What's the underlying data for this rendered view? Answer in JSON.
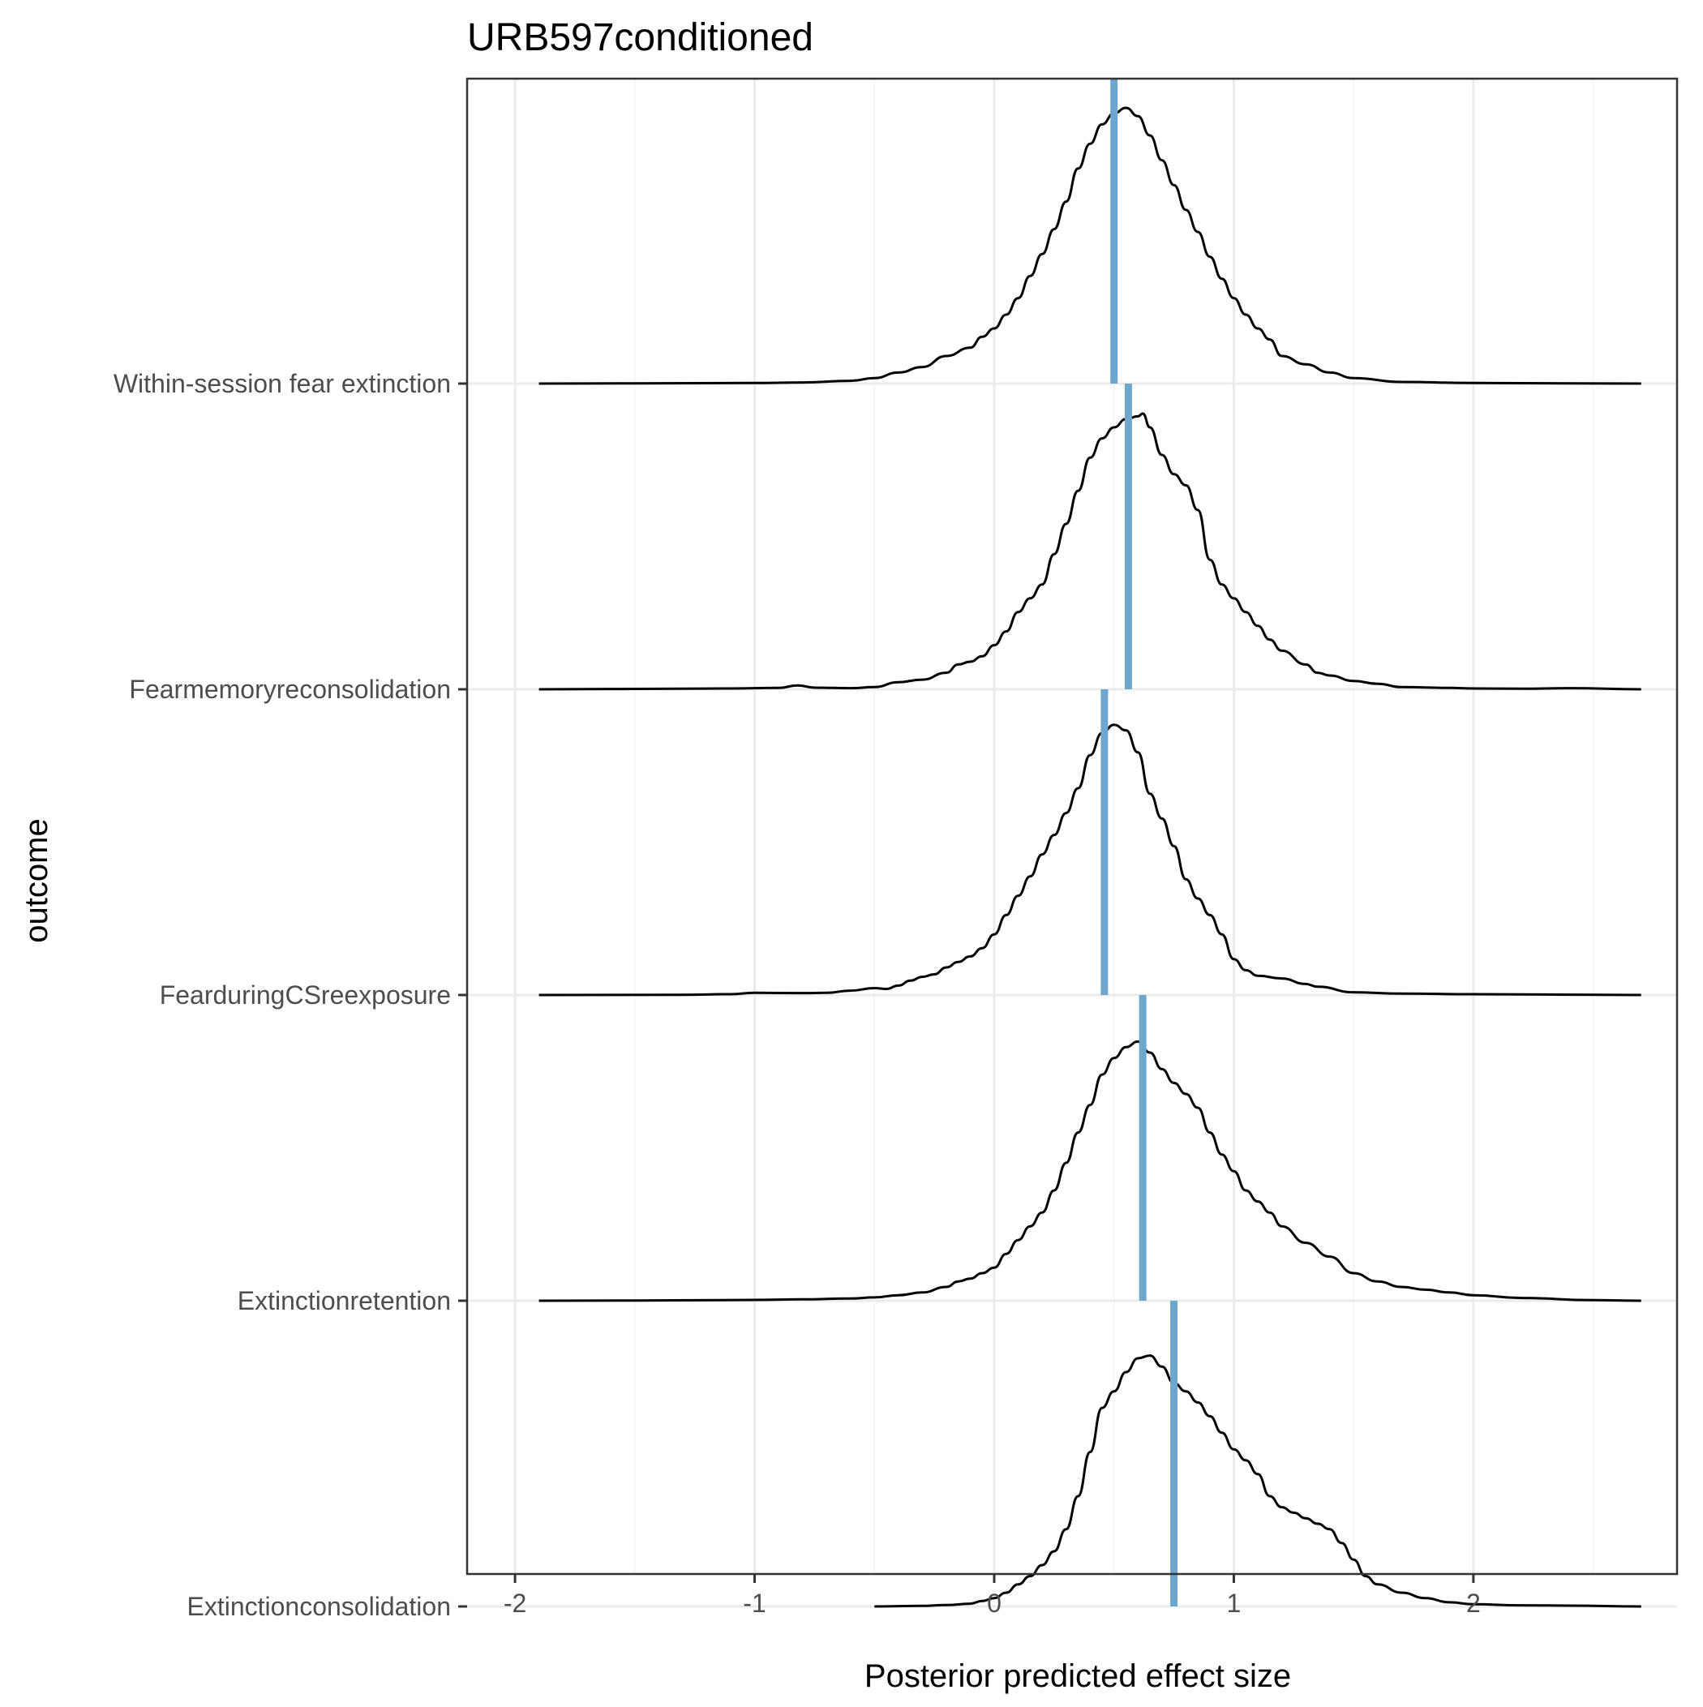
{
  "chart_data": {
    "type": "ridgeline",
    "title": "URB597conditioned",
    "xlabel": "Posterior predicted effect size",
    "ylabel": "outcome",
    "xlim": [
      -2.2,
      2.85
    ],
    "x_ticks": [
      "-2",
      "-1",
      "0",
      "1",
      "2"
    ],
    "x_tick_values": [
      -2,
      -1,
      0,
      1,
      2
    ],
    "grid": true,
    "colors": {
      "density_line": "#000000",
      "mean_line": "#6ea6cd",
      "grid_major": "#ebebeb",
      "grid_minor": "#f3f3f3",
      "panel_border": "#333333"
    },
    "series": [
      {
        "name": "Within-session fear extinction",
        "mean": 0.5,
        "density": [
          [
            -1.9,
            0
          ],
          [
            -1.5,
            0.001
          ],
          [
            -1.0,
            0.002
          ],
          [
            -0.8,
            0.004
          ],
          [
            -0.6,
            0.01
          ],
          [
            -0.5,
            0.02
          ],
          [
            -0.4,
            0.04
          ],
          [
            -0.3,
            0.06
          ],
          [
            -0.2,
            0.1
          ],
          [
            -0.1,
            0.13
          ],
          [
            -0.05,
            0.17
          ],
          [
            0.0,
            0.2
          ],
          [
            0.05,
            0.25
          ],
          [
            0.1,
            0.31
          ],
          [
            0.15,
            0.39
          ],
          [
            0.2,
            0.47
          ],
          [
            0.25,
            0.56
          ],
          [
            0.3,
            0.66
          ],
          [
            0.35,
            0.78
          ],
          [
            0.4,
            0.87
          ],
          [
            0.45,
            0.94
          ],
          [
            0.5,
            0.98
          ],
          [
            0.55,
            1.0
          ],
          [
            0.6,
            0.97
          ],
          [
            0.65,
            0.9
          ],
          [
            0.7,
            0.81
          ],
          [
            0.75,
            0.72
          ],
          [
            0.8,
            0.63
          ],
          [
            0.85,
            0.55
          ],
          [
            0.9,
            0.46
          ],
          [
            0.95,
            0.38
          ],
          [
            1.0,
            0.31
          ],
          [
            1.05,
            0.25
          ],
          [
            1.1,
            0.2
          ],
          [
            1.15,
            0.16
          ],
          [
            1.2,
            0.1
          ],
          [
            1.3,
            0.07
          ],
          [
            1.4,
            0.04
          ],
          [
            1.5,
            0.02
          ],
          [
            1.7,
            0.006
          ],
          [
            2.0,
            0.002
          ],
          [
            2.4,
            0.001
          ],
          [
            2.7,
            0
          ]
        ]
      },
      {
        "name": "Fearmemoryreconsolidation",
        "mean": 0.56,
        "density": [
          [
            -1.9,
            0
          ],
          [
            -1.3,
            0.002
          ],
          [
            -1.1,
            0.003
          ],
          [
            -0.9,
            0.005
          ],
          [
            -0.82,
            0.014
          ],
          [
            -0.75,
            0.006
          ],
          [
            -0.6,
            0.004
          ],
          [
            -0.5,
            0.008
          ],
          [
            -0.4,
            0.026
          ],
          [
            -0.3,
            0.035
          ],
          [
            -0.2,
            0.06
          ],
          [
            -0.15,
            0.09
          ],
          [
            -0.1,
            0.1
          ],
          [
            -0.05,
            0.12
          ],
          [
            0.0,
            0.16
          ],
          [
            0.05,
            0.21
          ],
          [
            0.1,
            0.28
          ],
          [
            0.15,
            0.33
          ],
          [
            0.2,
            0.38
          ],
          [
            0.25,
            0.49
          ],
          [
            0.3,
            0.6
          ],
          [
            0.35,
            0.72
          ],
          [
            0.4,
            0.84
          ],
          [
            0.45,
            0.91
          ],
          [
            0.5,
            0.95
          ],
          [
            0.55,
            0.98
          ],
          [
            0.6,
            0.99
          ],
          [
            0.62,
            1.0
          ],
          [
            0.65,
            0.95
          ],
          [
            0.7,
            0.85
          ],
          [
            0.75,
            0.78
          ],
          [
            0.8,
            0.74
          ],
          [
            0.85,
            0.65
          ],
          [
            0.9,
            0.47
          ],
          [
            0.95,
            0.38
          ],
          [
            1.0,
            0.33
          ],
          [
            1.05,
            0.28
          ],
          [
            1.1,
            0.23
          ],
          [
            1.15,
            0.18
          ],
          [
            1.2,
            0.14
          ],
          [
            1.3,
            0.09
          ],
          [
            1.35,
            0.06
          ],
          [
            1.4,
            0.05
          ],
          [
            1.5,
            0.03
          ],
          [
            1.6,
            0.02
          ],
          [
            1.7,
            0.008
          ],
          [
            1.9,
            0.005
          ],
          [
            2.0,
            0.003
          ],
          [
            2.2,
            0.002
          ],
          [
            2.4,
            0.004
          ],
          [
            2.7,
            0
          ]
        ]
      },
      {
        "name": "FearduringCSreexposure",
        "mean": 0.46,
        "density": [
          [
            -1.9,
            0
          ],
          [
            -1.3,
            0.001
          ],
          [
            -1.1,
            0.003
          ],
          [
            -1.0,
            0.008
          ],
          [
            -0.8,
            0.007
          ],
          [
            -0.7,
            0.008
          ],
          [
            -0.6,
            0.016
          ],
          [
            -0.5,
            0.025
          ],
          [
            -0.45,
            0.022
          ],
          [
            -0.4,
            0.034
          ],
          [
            -0.35,
            0.052
          ],
          [
            -0.3,
            0.066
          ],
          [
            -0.25,
            0.075
          ],
          [
            -0.2,
            0.1
          ],
          [
            -0.15,
            0.12
          ],
          [
            -0.1,
            0.14
          ],
          [
            -0.05,
            0.17
          ],
          [
            0.0,
            0.22
          ],
          [
            0.05,
            0.29
          ],
          [
            0.1,
            0.36
          ],
          [
            0.15,
            0.43
          ],
          [
            0.2,
            0.51
          ],
          [
            0.25,
            0.58
          ],
          [
            0.3,
            0.66
          ],
          [
            0.35,
            0.75
          ],
          [
            0.4,
            0.87
          ],
          [
            0.45,
            0.95
          ],
          [
            0.5,
            0.98
          ],
          [
            0.55,
            0.96
          ],
          [
            0.6,
            0.88
          ],
          [
            0.65,
            0.73
          ],
          [
            0.7,
            0.64
          ],
          [
            0.75,
            0.54
          ],
          [
            0.8,
            0.42
          ],
          [
            0.85,
            0.35
          ],
          [
            0.9,
            0.29
          ],
          [
            0.95,
            0.22
          ],
          [
            1.0,
            0.13
          ],
          [
            1.05,
            0.09
          ],
          [
            1.1,
            0.07
          ],
          [
            1.2,
            0.06
          ],
          [
            1.3,
            0.04
          ],
          [
            1.35,
            0.03
          ],
          [
            1.5,
            0.01
          ],
          [
            1.7,
            0.005
          ],
          [
            2.0,
            0.003
          ],
          [
            2.7,
            0
          ]
        ]
      },
      {
        "name": "Extinctionretention",
        "mean": 0.62,
        "density": [
          [
            -1.9,
            0
          ],
          [
            -1.5,
            0.001
          ],
          [
            -1.0,
            0.003
          ],
          [
            -0.8,
            0.005
          ],
          [
            -0.6,
            0.008
          ],
          [
            -0.5,
            0.012
          ],
          [
            -0.4,
            0.02
          ],
          [
            -0.3,
            0.03
          ],
          [
            -0.2,
            0.05
          ],
          [
            -0.15,
            0.07
          ],
          [
            -0.1,
            0.08
          ],
          [
            -0.05,
            0.1
          ],
          [
            0.0,
            0.12
          ],
          [
            0.05,
            0.17
          ],
          [
            0.1,
            0.22
          ],
          [
            0.15,
            0.27
          ],
          [
            0.2,
            0.32
          ],
          [
            0.25,
            0.4
          ],
          [
            0.3,
            0.5
          ],
          [
            0.35,
            0.61
          ],
          [
            0.4,
            0.71
          ],
          [
            0.45,
            0.82
          ],
          [
            0.5,
            0.88
          ],
          [
            0.55,
            0.92
          ],
          [
            0.6,
            0.94
          ],
          [
            0.65,
            0.9
          ],
          [
            0.7,
            0.84
          ],
          [
            0.75,
            0.79
          ],
          [
            0.8,
            0.75
          ],
          [
            0.85,
            0.7
          ],
          [
            0.9,
            0.61
          ],
          [
            0.95,
            0.53
          ],
          [
            1.0,
            0.47
          ],
          [
            1.05,
            0.4
          ],
          [
            1.1,
            0.36
          ],
          [
            1.15,
            0.32
          ],
          [
            1.2,
            0.27
          ],
          [
            1.3,
            0.21
          ],
          [
            1.4,
            0.16
          ],
          [
            1.5,
            0.1
          ],
          [
            1.6,
            0.07
          ],
          [
            1.7,
            0.05
          ],
          [
            1.8,
            0.04
          ],
          [
            1.9,
            0.03
          ],
          [
            2.0,
            0.02
          ],
          [
            2.2,
            0.01
          ],
          [
            2.5,
            0.002
          ],
          [
            2.7,
            0
          ]
        ]
      },
      {
        "name": "Extinctionconsolidation",
        "mean": 0.75,
        "density": [
          [
            -0.5,
            0
          ],
          [
            -0.3,
            0.002
          ],
          [
            -0.2,
            0.005
          ],
          [
            -0.1,
            0.01
          ],
          [
            -0.05,
            0.02
          ],
          [
            0.0,
            0.03
          ],
          [
            0.05,
            0.05
          ],
          [
            0.1,
            0.08
          ],
          [
            0.15,
            0.11
          ],
          [
            0.2,
            0.15
          ],
          [
            0.25,
            0.2
          ],
          [
            0.3,
            0.28
          ],
          [
            0.35,
            0.4
          ],
          [
            0.4,
            0.56
          ],
          [
            0.45,
            0.72
          ],
          [
            0.5,
            0.78
          ],
          [
            0.55,
            0.85
          ],
          [
            0.6,
            0.9
          ],
          [
            0.65,
            0.91
          ],
          [
            0.7,
            0.87
          ],
          [
            0.75,
            0.81
          ],
          [
            0.8,
            0.78
          ],
          [
            0.85,
            0.74
          ],
          [
            0.9,
            0.69
          ],
          [
            0.95,
            0.63
          ],
          [
            1.0,
            0.57
          ],
          [
            1.05,
            0.53
          ],
          [
            1.1,
            0.48
          ],
          [
            1.15,
            0.4
          ],
          [
            1.2,
            0.36
          ],
          [
            1.25,
            0.34
          ],
          [
            1.3,
            0.32
          ],
          [
            1.35,
            0.3
          ],
          [
            1.4,
            0.28
          ],
          [
            1.45,
            0.23
          ],
          [
            1.5,
            0.17
          ],
          [
            1.55,
            0.11
          ],
          [
            1.6,
            0.08
          ],
          [
            1.7,
            0.05
          ],
          [
            1.8,
            0.03
          ],
          [
            1.9,
            0.015
          ],
          [
            2.0,
            0.008
          ],
          [
            2.2,
            0.004
          ],
          [
            2.4,
            0.003
          ],
          [
            2.7,
            0
          ]
        ]
      }
    ]
  }
}
